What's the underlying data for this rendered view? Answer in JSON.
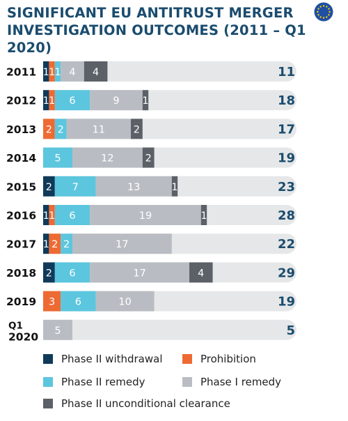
{
  "title_lines": [
    "SIGNIFICANT EU ANTITRUST MERGER",
    "INVESTIGATION OUTCOMES (2011 – Q1 2020)"
  ],
  "logo": "eu-flag-icon",
  "colors": {
    "Phase II withdrawal": "#0f3a5a",
    "Prohibition": "#ee6a33",
    "Phase II remedy": "#5cc6de",
    "Phase I remedy": "#b9bdc3",
    "Phase II unconditional clearance": "#5c6168",
    "track": "#e6e7e8",
    "title": "#1a4c6e",
    "total": "#1a4c6e"
  },
  "chart_data": {
    "type": "bar",
    "orientation": "horizontal",
    "stacked": true,
    "categories": [
      "2011",
      "2012",
      "2013",
      "2014",
      "2015",
      "2016",
      "2017",
      "2018",
      "2019",
      "Q1 2020"
    ],
    "series": [
      {
        "name": "Phase II withdrawal",
        "values": [
          1,
          1,
          0,
          0,
          2,
          1,
          1,
          2,
          0,
          0
        ]
      },
      {
        "name": "Prohibition",
        "values": [
          1,
          1,
          2,
          0,
          0,
          1,
          2,
          0,
          3,
          0
        ]
      },
      {
        "name": "Phase II remedy",
        "values": [
          1,
          6,
          2,
          5,
          7,
          6,
          2,
          6,
          6,
          0
        ]
      },
      {
        "name": "Phase I remedy",
        "values": [
          4,
          9,
          11,
          12,
          13,
          19,
          17,
          17,
          10,
          5
        ]
      },
      {
        "name": "Phase II unconditional clearance",
        "values": [
          4,
          1,
          2,
          2,
          1,
          1,
          0,
          4,
          0,
          0
        ]
      }
    ],
    "totals": [
      11,
      18,
      17,
      19,
      23,
      28,
      22,
      29,
      19,
      5
    ],
    "legend": [
      "Phase II withdrawal",
      "Prohibition",
      "Phase II remedy",
      "Phase I remedy",
      "Phase II unconditional clearance"
    ],
    "legend_position": "bottom",
    "grid": false
  }
}
